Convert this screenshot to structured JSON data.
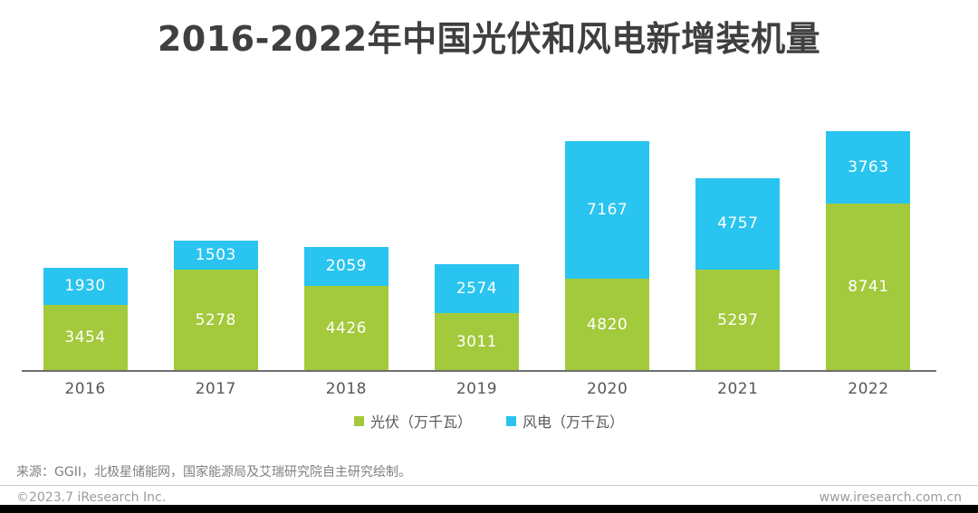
{
  "page": {
    "title": "2016-2022年中国光伏和风电新增装机量"
  },
  "chart_data": {
    "type": "bar",
    "stacked": true,
    "title": "2016-2022年中国光伏和风电新增装机量",
    "categories": [
      "2016",
      "2017",
      "2018",
      "2019",
      "2020",
      "2021",
      "2022"
    ],
    "series": [
      {
        "key": "pv",
        "name": "光伏（万千瓦）",
        "color": "#a3c93c",
        "values": [
          3454,
          5278,
          4426,
          3011,
          4820,
          5297,
          8741
        ]
      },
      {
        "key": "wind",
        "name": "风电（万千瓦）",
        "color": "#29c4ef",
        "values": [
          1930,
          1503,
          2059,
          2574,
          7167,
          4757,
          3763
        ]
      }
    ],
    "totals": [
      5384,
      6781,
      6485,
      5585,
      11987,
      10054,
      12504
    ],
    "xlabel": "",
    "ylabel": "",
    "ylim": [
      0,
      12504
    ],
    "grid": false,
    "y_axis_visible": false,
    "legend_position": "bottom",
    "value_labels": "inside segments, white text"
  },
  "footer": {
    "source": "来源：GGII，北极星储能网，国家能源局及艾瑞研究院自主研究绘制。",
    "copyright": "©2023.7 iResearch Inc.",
    "website": "www.iresearch.com.cn"
  },
  "colors": {
    "pv_green": "#a3c93c",
    "wind_blue": "#29c4ef",
    "title_text": "#3f3f3f",
    "axis_text": "#595757",
    "source_text": "#7f7f7f",
    "footer_text": "#9b9b9b",
    "bottom_bar": "#000000"
  }
}
